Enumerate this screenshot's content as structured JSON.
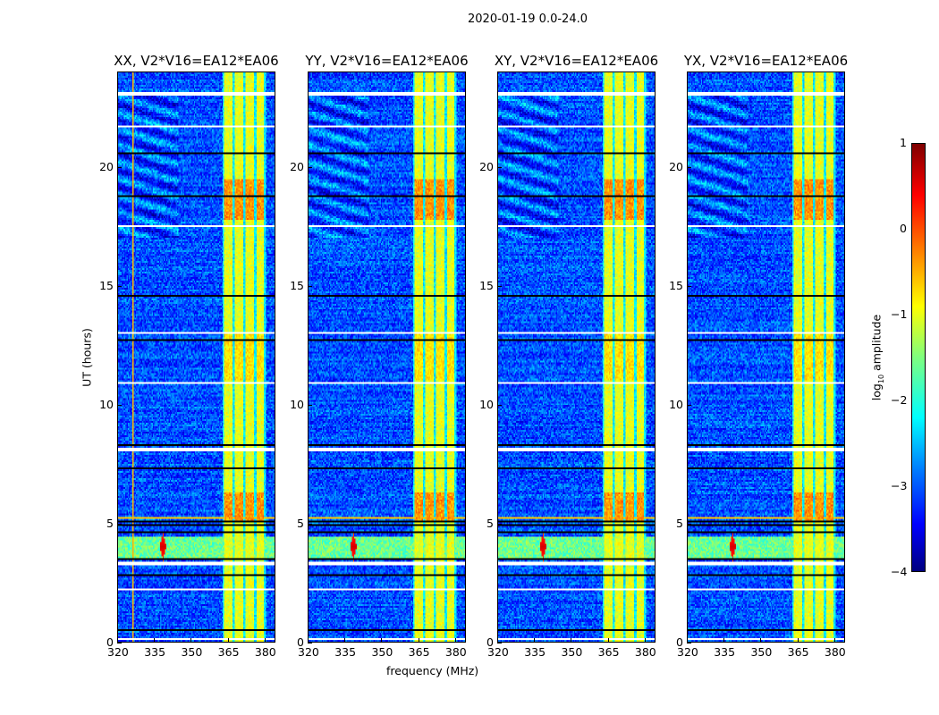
{
  "chart_data": {
    "type": "heatmap",
    "title": "2020-01-19 0.0-24.0",
    "xlabel": "frequency (MHz)",
    "ylabel": "UT (hours)",
    "xlim": [
      320,
      384.4
    ],
    "ylim": [
      0,
      24
    ],
    "xticks": [
      "320",
      "335",
      "350",
      "365",
      "380"
    ],
    "xtick_values": [
      320,
      335,
      350,
      365,
      380
    ],
    "yticks": [
      "0",
      "5",
      "10",
      "15",
      "20"
    ],
    "ytick_values": [
      0,
      5,
      10,
      15,
      20
    ],
    "panels": [
      {
        "title": "XX, V2*V16=EA12*EA06",
        "seed": 1
      },
      {
        "title": "YY, V2*V16=EA12*EA06",
        "seed": 2
      },
      {
        "title": "XY, V2*V16=EA12*EA06",
        "seed": 3
      },
      {
        "title": "YX, V2*V16=EA12*EA06",
        "seed": 4
      }
    ],
    "colorbar": {
      "label_prefix": "log",
      "label_sub": "10",
      "label_suffix": " amplitude",
      "range": [
        -4,
        1
      ],
      "ticks": [
        "−4",
        "−3",
        "−2",
        "−1",
        "0",
        "1"
      ],
      "tick_values": [
        -4,
        -3,
        -2,
        -1,
        0,
        1
      ],
      "colormap": "jet"
    },
    "background_log_amplitude": -3.0,
    "high_amplitude_subbands_mhz": [
      [
        363.5,
        367.2
      ],
      [
        368.0,
        371.6
      ],
      [
        372.4,
        376.0
      ],
      [
        376.8,
        380.0
      ]
    ],
    "subband_base_log_amplitude": -1.0,
    "subband_bright_periods_hours": [
      [
        17.8,
        19.5,
        0.8
      ],
      [
        5.0,
        6.3,
        0.8
      ],
      [
        11.0,
        13.0,
        0.3
      ]
    ],
    "rfi_event": {
      "time_hours": 4.0,
      "peak_freq_mhz": 338.5,
      "peak_log_amplitude": 0.6
    },
    "flagged_rows_hours": [
      0.1,
      2.2,
      3.3,
      8.1,
      10.9,
      13.0,
      17.5,
      21.7,
      23.1
    ],
    "dark_rows_hours": [
      0.3,
      0.5,
      1.2,
      2.8,
      3.5,
      4.6,
      4.9,
      5.05,
      6.9,
      7.3,
      8.3,
      9.3,
      10.5,
      12.7,
      14.6,
      16.8,
      18.8,
      20.6,
      22.5
    ]
  }
}
